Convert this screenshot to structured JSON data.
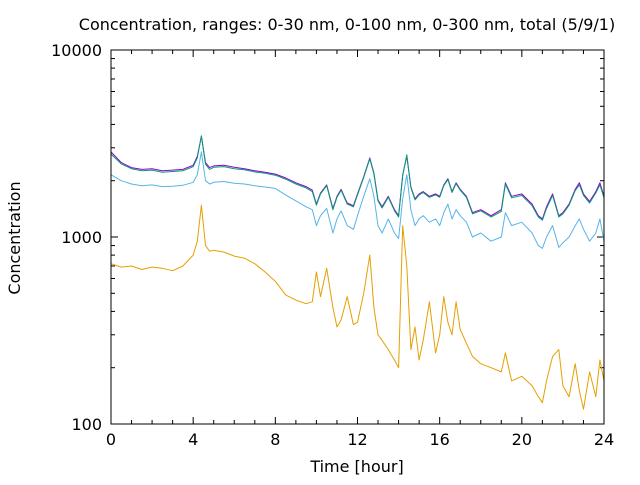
{
  "chart_data": {
    "type": "line",
    "title": "Concentration, ranges: 0-30 nm, 0-100 nm, 0-300 nm, total (5/9/1)",
    "xlabel": "Time [hour]",
    "ylabel": "Concentration",
    "xlim": [
      0,
      24
    ],
    "ylim": [
      100,
      10000
    ],
    "yscale": "log",
    "grid": false,
    "legend": "none",
    "x_ticks": [
      0,
      4,
      8,
      12,
      16,
      20,
      24
    ],
    "y_ticks": [
      100,
      1000,
      10000
    ],
    "series": [
      {
        "color": "#9400d3",
        "x": [
          0,
          0.5,
          1,
          1.5,
          2,
          2.5,
          3,
          3.5,
          4,
          4.2,
          4.4,
          4.6,
          4.8,
          5,
          5.5,
          6,
          6.5,
          7,
          7.5,
          8,
          8.5,
          9,
          9.5,
          9.8,
          10,
          10.2,
          10.5,
          10.8,
          11,
          11.2,
          11.5,
          11.8,
          12,
          12.3,
          12.6,
          12.8,
          13,
          13.2,
          13.5,
          13.8,
          14,
          14.2,
          14.4,
          14.6,
          14.8,
          15,
          15.2,
          15.5,
          15.8,
          16,
          16.2,
          16.4,
          16.6,
          16.8,
          17,
          17.3,
          17.6,
          18,
          18.5,
          19,
          19.2,
          19.5,
          20,
          20.5,
          20.8,
          21,
          21.2,
          21.5,
          21.8,
          22,
          22.3,
          22.6,
          22.8,
          23,
          23.3,
          23.6,
          23.8,
          24
        ],
        "y": [
          2850,
          2500,
          2350,
          2300,
          2320,
          2260,
          2280,
          2300,
          2420,
          2700,
          3450,
          2500,
          2350,
          2400,
          2420,
          2360,
          2320,
          2260,
          2220,
          2170,
          2070,
          1950,
          1860,
          1780,
          1500,
          1720,
          1900,
          1420,
          1650,
          1800,
          1520,
          1470,
          1700,
          2100,
          2650,
          2200,
          1580,
          1450,
          1650,
          1400,
          1300,
          2150,
          2700,
          1850,
          1600,
          1700,
          1750,
          1650,
          1700,
          1650,
          1900,
          2050,
          1750,
          1950,
          1800,
          1650,
          1350,
          1400,
          1300,
          1400,
          1950,
          1650,
          1700,
          1500,
          1300,
          1250,
          1450,
          1700,
          1300,
          1350,
          1500,
          1800,
          1950,
          1700,
          1550,
          1750,
          1950,
          1650
        ]
      },
      {
        "color": "#009e73",
        "x": [
          0,
          0.5,
          1,
          1.5,
          2,
          2.5,
          3,
          3.5,
          4,
          4.2,
          4.4,
          4.6,
          4.8,
          5,
          5.5,
          6,
          6.5,
          7,
          7.5,
          8,
          8.5,
          9,
          9.5,
          9.8,
          10,
          10.2,
          10.5,
          10.8,
          11,
          11.2,
          11.5,
          11.8,
          12,
          12.3,
          12.6,
          12.8,
          13,
          13.2,
          13.5,
          13.8,
          14,
          14.2,
          14.4,
          14.6,
          14.8,
          15,
          15.2,
          15.5,
          15.8,
          16,
          16.2,
          16.4,
          16.6,
          16.8,
          17,
          17.3,
          17.6,
          18,
          18.5,
          19,
          19.2,
          19.5,
          20,
          20.5,
          20.8,
          21,
          21.2,
          21.5,
          21.8,
          22,
          22.3,
          22.6,
          22.8,
          23,
          23.3,
          23.6,
          23.8,
          24
        ],
        "y": [
          2780,
          2460,
          2320,
          2260,
          2280,
          2220,
          2240,
          2260,
          2380,
          2650,
          3480,
          2450,
          2300,
          2360,
          2380,
          2320,
          2290,
          2230,
          2190,
          2140,
          2040,
          1920,
          1830,
          1750,
          1480,
          1700,
          1880,
          1400,
          1630,
          1780,
          1500,
          1450,
          1680,
          2080,
          2620,
          2170,
          1560,
          1430,
          1630,
          1380,
          1280,
          2130,
          2750,
          1830,
          1580,
          1680,
          1730,
          1630,
          1680,
          1630,
          1880,
          2030,
          1730,
          1930,
          1780,
          1630,
          1330,
          1380,
          1280,
          1370,
          1920,
          1620,
          1670,
          1470,
          1280,
          1230,
          1420,
          1670,
          1280,
          1330,
          1480,
          1770,
          1900,
          1670,
          1520,
          1720,
          1900,
          1620
        ]
      },
      {
        "color": "#56b4e9",
        "x": [
          0,
          0.5,
          1,
          1.5,
          2,
          2.5,
          3,
          3.5,
          4,
          4.2,
          4.4,
          4.6,
          4.8,
          5,
          5.5,
          6,
          6.5,
          7,
          7.5,
          8,
          8.5,
          9,
          9.5,
          9.8,
          10,
          10.2,
          10.5,
          10.8,
          11,
          11.2,
          11.5,
          11.8,
          12,
          12.3,
          12.6,
          12.8,
          13,
          13.2,
          13.5,
          13.8,
          14,
          14.2,
          14.4,
          14.6,
          14.8,
          15,
          15.2,
          15.5,
          15.8,
          16,
          16.2,
          16.4,
          16.6,
          16.8,
          17,
          17.3,
          17.6,
          18,
          18.5,
          19,
          19.2,
          19.5,
          20,
          20.5,
          20.8,
          21,
          21.2,
          21.5,
          21.8,
          22,
          22.3,
          22.6,
          22.8,
          23,
          23.3,
          23.6,
          23.8,
          24
        ],
        "y": [
          2150,
          2000,
          1920,
          1880,
          1900,
          1860,
          1870,
          1890,
          1960,
          2150,
          2850,
          2000,
          1920,
          1960,
          1980,
          1940,
          1920,
          1880,
          1850,
          1820,
          1680,
          1560,
          1450,
          1400,
          1150,
          1300,
          1420,
          1050,
          1250,
          1380,
          1150,
          1100,
          1300,
          1650,
          2050,
          1650,
          1150,
          1050,
          1250,
          1050,
          980,
          1600,
          2150,
          1400,
          1150,
          1250,
          1300,
          1200,
          1250,
          1150,
          1350,
          1500,
          1250,
          1400,
          1300,
          1200,
          1000,
          1050,
          950,
          1000,
          1350,
          1150,
          1200,
          1050,
          900,
          870,
          1000,
          1150,
          880,
          930,
          1000,
          1150,
          1250,
          1100,
          950,
          1050,
          1250,
          950
        ]
      },
      {
        "color": "#e69f00",
        "x": [
          0,
          0.5,
          1,
          1.5,
          2,
          2.5,
          3,
          3.5,
          4,
          4.2,
          4.4,
          4.6,
          4.8,
          5,
          5.5,
          6,
          6.5,
          7,
          7.5,
          8,
          8.5,
          9,
          9.5,
          9.8,
          10,
          10.2,
          10.5,
          10.8,
          11,
          11.2,
          11.5,
          11.8,
          12,
          12.3,
          12.6,
          12.8,
          13,
          13.2,
          13.5,
          13.8,
          14,
          14.2,
          14.4,
          14.6,
          14.8,
          15,
          15.2,
          15.5,
          15.8,
          16,
          16.2,
          16.4,
          16.6,
          16.8,
          17,
          17.3,
          17.6,
          18,
          18.5,
          19,
          19.2,
          19.5,
          20,
          20.5,
          20.8,
          21,
          21.2,
          21.5,
          21.8,
          22,
          22.3,
          22.6,
          22.8,
          23,
          23.3,
          23.6,
          23.8,
          24
        ],
        "y": [
          720,
          690,
          700,
          670,
          690,
          680,
          660,
          700,
          800,
          950,
          1480,
          900,
          840,
          850,
          830,
          790,
          770,
          720,
          650,
          580,
          490,
          460,
          440,
          450,
          650,
          480,
          680,
          420,
          330,
          360,
          480,
          340,
          350,
          500,
          800,
          420,
          300,
          280,
          250,
          220,
          200,
          1150,
          700,
          250,
          330,
          220,
          280,
          450,
          240,
          300,
          480,
          350,
          300,
          450,
          320,
          270,
          230,
          210,
          200,
          190,
          240,
          170,
          180,
          160,
          140,
          130,
          170,
          230,
          250,
          160,
          140,
          210,
          150,
          120,
          190,
          140,
          220,
          170
        ]
      }
    ]
  }
}
